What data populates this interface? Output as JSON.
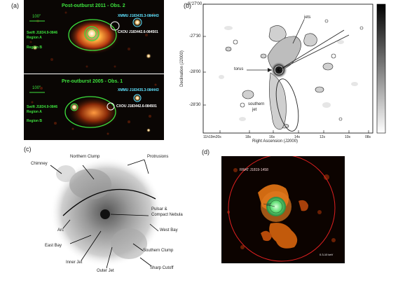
{
  "panel_a": {
    "label": "(a)",
    "top": {
      "title": "Post-outburst 2011 - Obs. 2",
      "scale": "100\"",
      "swift_src": "Swift J1834.9-0846",
      "region_a": "Region A",
      "region_b": "Region B",
      "xmmu": "XMMU J183435.3-084443",
      "cxou": "CXOU J183442.6-084501"
    },
    "bottom": {
      "title": "Pre-outburst 2005 - Obs. 1",
      "scale": "100\"",
      "swift_src": "Swift J1834.9-0846",
      "region_a": "Region A",
      "region_b": "Region B",
      "xmmu": "XMMU J183435.3-084443",
      "cxou": "CXOU J183442.6-084501"
    }
  },
  "panel_b": {
    "label": "(b)",
    "ylabel": "Declination (J2000)",
    "xlabel": "Right Ascension (J2000)",
    "yticks": [
      "-6°27'00",
      "-27'30",
      "-28'00",
      "-28'30"
    ],
    "xticks": [
      "11h19m20s",
      "18s",
      "16s",
      "14s",
      "12s",
      "10s",
      "08s"
    ],
    "annotations": {
      "jets": "jets",
      "torus": "torus",
      "southern_jet_1": "southern",
      "southern_jet_2": "jet"
    }
  },
  "panel_c": {
    "label": "(c)",
    "labels": {
      "northern_clump": "Northern Clump",
      "protrusions": "Protrusions",
      "chimney": "Chimney",
      "pulsar": "Pulsar &",
      "pulsar2": "Compact Nebula",
      "arc": "Arc",
      "west_bay": "West Bay",
      "east_bay": "East Bay",
      "southern_clump": "Southern Clump",
      "inner_jet": "Inner Jet",
      "outer_jet": "Outer Jet",
      "sharp_cutoff": "Sharp Cutoff"
    }
  },
  "panel_d": {
    "label": "(d)",
    "source": "RRAT J1819-1458",
    "inner_scale": "15\"",
    "band": "0.3-10 keV"
  },
  "colors": {
    "green": "#3de03d",
    "cyan": "#5fe3ff",
    "red": "#e02020",
    "orange": "#e07a20"
  }
}
